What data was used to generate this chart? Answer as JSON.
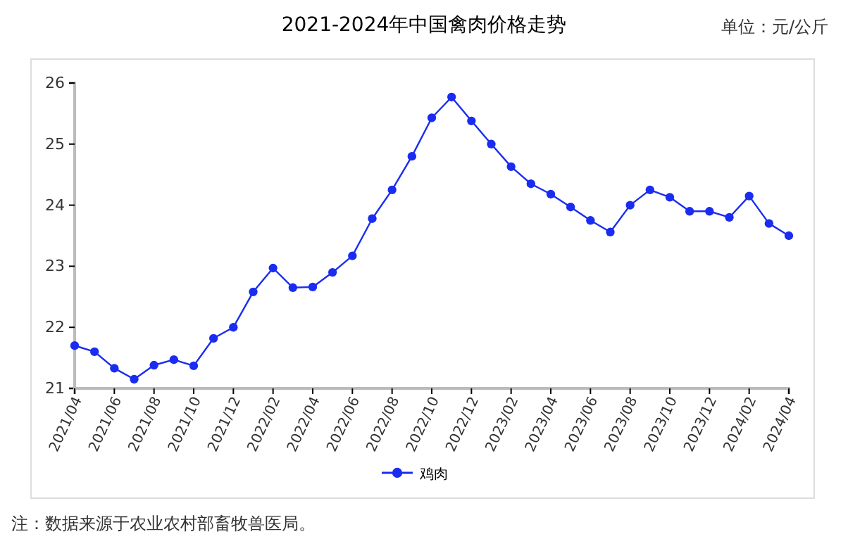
{
  "chart_data": {
    "type": "line",
    "title": "2021-2024年中国禽肉价格走势",
    "categories": [
      "2021/04",
      null,
      "2021/06",
      null,
      "2021/08",
      null,
      "2021/10",
      null,
      "2021/12",
      null,
      "2022/02",
      null,
      "2022/04",
      null,
      "2022/06",
      null,
      "2022/08",
      null,
      "2022/10",
      null,
      "2022/12",
      null,
      "2023/02",
      null,
      "2023/04",
      null,
      "2023/06",
      null,
      "2023/08",
      null,
      "2023/10",
      null,
      "2023/12",
      null,
      "2024/02",
      null,
      "2024/04"
    ],
    "series": [
      {
        "name": "鸡肉",
        "color": "#1a2cf0",
        "values": [
          21.7,
          21.6,
          21.33,
          21.15,
          21.38,
          21.47,
          21.37,
          21.82,
          22.0,
          22.58,
          22.97,
          22.65,
          22.66,
          22.9,
          23.17,
          23.78,
          24.25,
          24.8,
          25.43,
          25.77,
          25.38,
          25.0,
          24.63,
          24.35,
          24.18,
          23.97,
          23.75,
          23.56,
          24.0,
          24.25,
          24.13,
          23.9,
          23.9,
          23.8,
          24.15,
          23.7,
          23.5
        ]
      }
    ],
    "ylim": [
      21,
      26
    ],
    "yticks": [
      21,
      22,
      23,
      24,
      25,
      26
    ],
    "annotations": [
      "单位：元/公斤",
      "注：数据来源于农业农村部畜牧兽医局。"
    ],
    "legend": "bottom",
    "marker": "circle",
    "line_style": "solid",
    "grid": false
  }
}
